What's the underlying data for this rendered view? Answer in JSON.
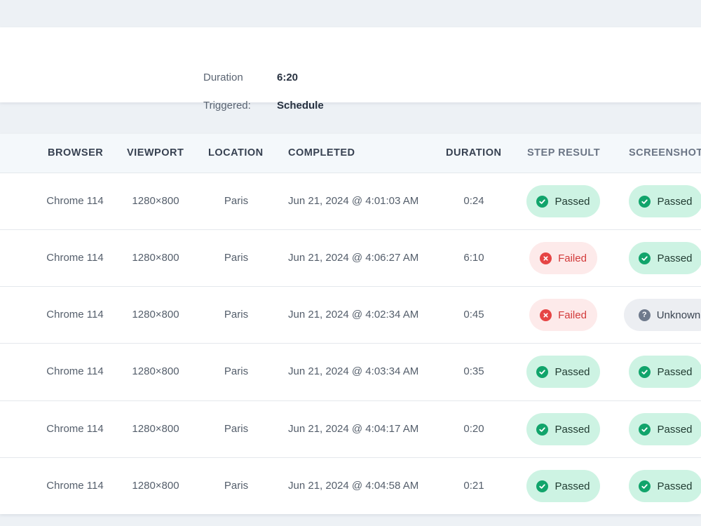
{
  "summary": {
    "duration_label": "Duration",
    "duration_value": "6:20",
    "triggered_label": "Triggered:",
    "triggered_value": "Schedule"
  },
  "table": {
    "headers": [
      "BROWSER",
      "VIEWPORT",
      "LOCATION",
      "COMPLETED",
      "DURATION",
      "STEP RESULT",
      "SCREENSHOT"
    ],
    "rows": [
      {
        "browser": "Chrome 114",
        "viewport": "1280×800",
        "location": "Paris",
        "completed": "Jun 21, 2024 @ 4:01:03 AM",
        "duration": "0:24",
        "step_result": "Passed",
        "screenshot": "Passed"
      },
      {
        "browser": "Chrome 114",
        "viewport": "1280×800",
        "location": "Paris",
        "completed": "Jun 21, 2024 @ 4:06:27 AM",
        "duration": "6:10",
        "step_result": "Failed",
        "screenshot": "Passed"
      },
      {
        "browser": "Chrome 114",
        "viewport": "1280×800",
        "location": "Paris",
        "completed": "Jun 21, 2024 @ 4:02:34 AM",
        "duration": "0:45",
        "step_result": "Failed",
        "screenshot": "Unknown"
      },
      {
        "browser": "Chrome 114",
        "viewport": "1280×800",
        "location": "Paris",
        "completed": "Jun 21, 2024 @ 4:03:34 AM",
        "duration": "0:35",
        "step_result": "Passed",
        "screenshot": "Passed"
      },
      {
        "browser": "Chrome 114",
        "viewport": "1280×800",
        "location": "Paris",
        "completed": "Jun 21, 2024 @ 4:04:17 AM",
        "duration": "0:20",
        "step_result": "Passed",
        "screenshot": "Passed"
      },
      {
        "browser": "Chrome 114",
        "viewport": "1280×800",
        "location": "Paris",
        "completed": "Jun 21, 2024 @ 4:04:58 AM",
        "duration": "0:21",
        "step_result": "Passed",
        "screenshot": "Passed"
      }
    ]
  },
  "status_icons": {
    "Passed": "check-circle-icon",
    "Failed": "x-circle-icon",
    "Unknown": "question-circle-icon"
  },
  "colors": {
    "passed_bg": "#cdf3e3",
    "passed_icon": "#11a46b",
    "failed_bg": "#fdeaea",
    "failed_text": "#d23a3a",
    "unknown_bg": "#eceef2"
  }
}
